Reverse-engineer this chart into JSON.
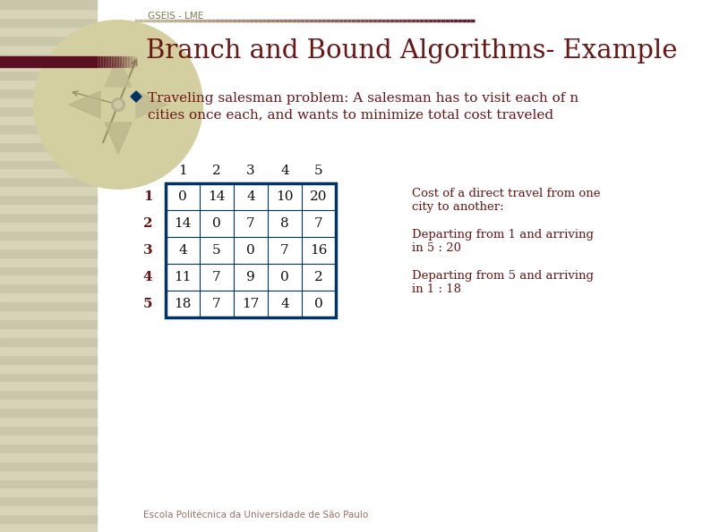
{
  "title": "Branch and Bound Algorithms- Example",
  "header_text": "GSEIS - LME",
  "bullet_text_line1": "Traveling salesman problem: A salesman has to visit each of n",
  "bullet_text_line2": "cities once each, and wants to minimize total cost traveled",
  "matrix": [
    [
      0,
      14,
      4,
      10,
      20
    ],
    [
      14,
      0,
      7,
      8,
      7
    ],
    [
      4,
      5,
      0,
      7,
      16
    ],
    [
      11,
      7,
      9,
      0,
      2
    ],
    [
      18,
      7,
      17,
      4,
      0
    ]
  ],
  "col_labels": [
    "1",
    "2",
    "3",
    "4",
    "5"
  ],
  "row_labels": [
    "1",
    "2",
    "3",
    "4",
    "5"
  ],
  "note1": "Cost of a direct travel from one",
  "note1b": "city to another:",
  "note2": "Departing from 1 and arriving",
  "note2b": "in 5 : 20",
  "note3": "Departing from 5 and arriving",
  "note3b": "in 1 : 18",
  "footer": "Escola Politécnica da Universidade de São Paulo",
  "bg_color": "#ffffff",
  "title_color": "#6b1515",
  "header_color": "#7a7a50",
  "text_color": "#6b1515",
  "table_border_color": "#003366",
  "bullet_color": "#003366",
  "stripe_light": "#d8d4b8",
  "stripe_dark": "#cac6aa",
  "header_line_start": "#c8c0a0",
  "header_line_end": "#5a1a2a",
  "footer_color": "#a07060",
  "compass_color": "#d4cfa0",
  "row_label_color": "#6b1515",
  "col_label_color": "#111111"
}
